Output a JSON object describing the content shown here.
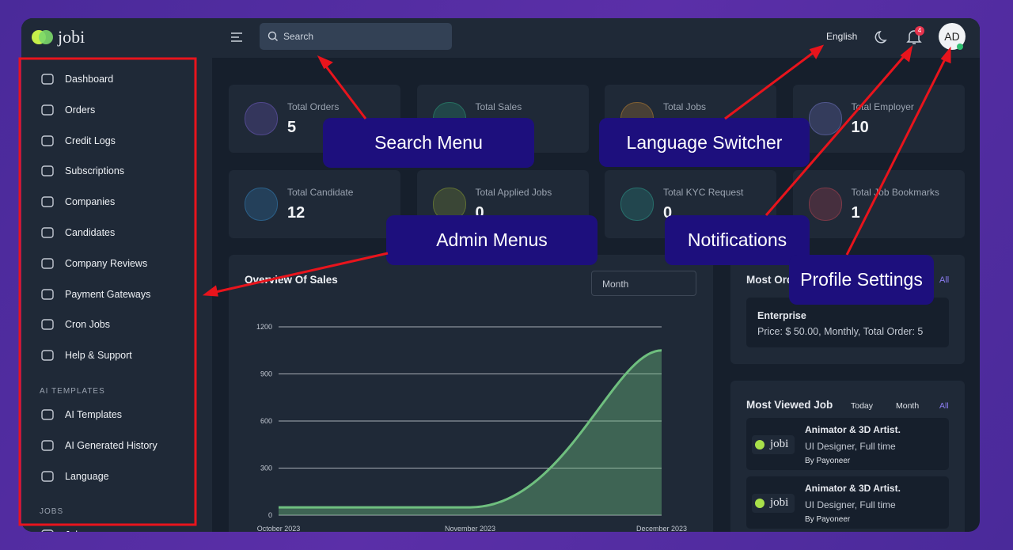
{
  "brand": "jobi",
  "header": {
    "search_placeholder": "Search",
    "language": "English",
    "notification_count": "4",
    "avatar": "AD"
  },
  "sidebar": {
    "items": [
      "Dashboard",
      "Orders",
      "Credit Logs",
      "Subscriptions",
      "Companies",
      "Candidates",
      "Company Reviews",
      "Payment Gateways",
      "Cron Jobs",
      "Help & Support"
    ],
    "sections": [
      {
        "title": "AI TEMPLATES",
        "items": [
          "AI Templates",
          "AI Generated History",
          "Language"
        ]
      },
      {
        "title": "JOBS",
        "items": [
          "Jobs"
        ]
      }
    ]
  },
  "stats": [
    {
      "label": "Total Orders",
      "value": "5"
    },
    {
      "label": "Total Sales"
    },
    {
      "label": "Total Jobs"
    },
    {
      "label": "Total Employer",
      "value": "10"
    },
    {
      "label": "Total Candidate",
      "value": "12"
    },
    {
      "label": "Total Applied Jobs",
      "value": "0"
    },
    {
      "label": "Total KYC Request",
      "value": "0"
    },
    {
      "label": "Total Job Bookmarks",
      "value": "1"
    }
  ],
  "sales_overview": {
    "period": "Month"
  },
  "chart_data": {
    "type": "line",
    "title": "Overview Of Sales",
    "categories": [
      "October 2023",
      "November 2023",
      "December 2023"
    ],
    "series": [
      {
        "name": "Sales",
        "color": "#6fbf7f",
        "values": [
          50,
          50,
          1050
        ]
      }
    ],
    "ylim": [
      0,
      1200
    ],
    "yticks": [
      0,
      300,
      600,
      900,
      1200
    ],
    "grid": true
  },
  "most_ordered": {
    "title": "Most Ordered Plan",
    "link": "All",
    "plan": {
      "name": "Enterprise",
      "details": "Price: $ 50.00, Monthly, Total Order: 5"
    }
  },
  "most_viewed": {
    "title": "Most Viewed Job",
    "filters": [
      "Today",
      "Month",
      "All"
    ],
    "jobs": [
      {
        "logo": "jobi",
        "title": "Animator & 3D Artist.",
        "meta": "UI Designer, Full time",
        "company": "By Payoneer"
      },
      {
        "logo": "jobi",
        "title": "Animator & 3D Artist.",
        "meta": "UI Designer, Full time",
        "company": "By Payoneer"
      }
    ]
  },
  "annotations": [
    "Search Menu",
    "Language Switcher",
    "Admin Menus",
    "Notifications",
    "Profile Settings"
  ]
}
